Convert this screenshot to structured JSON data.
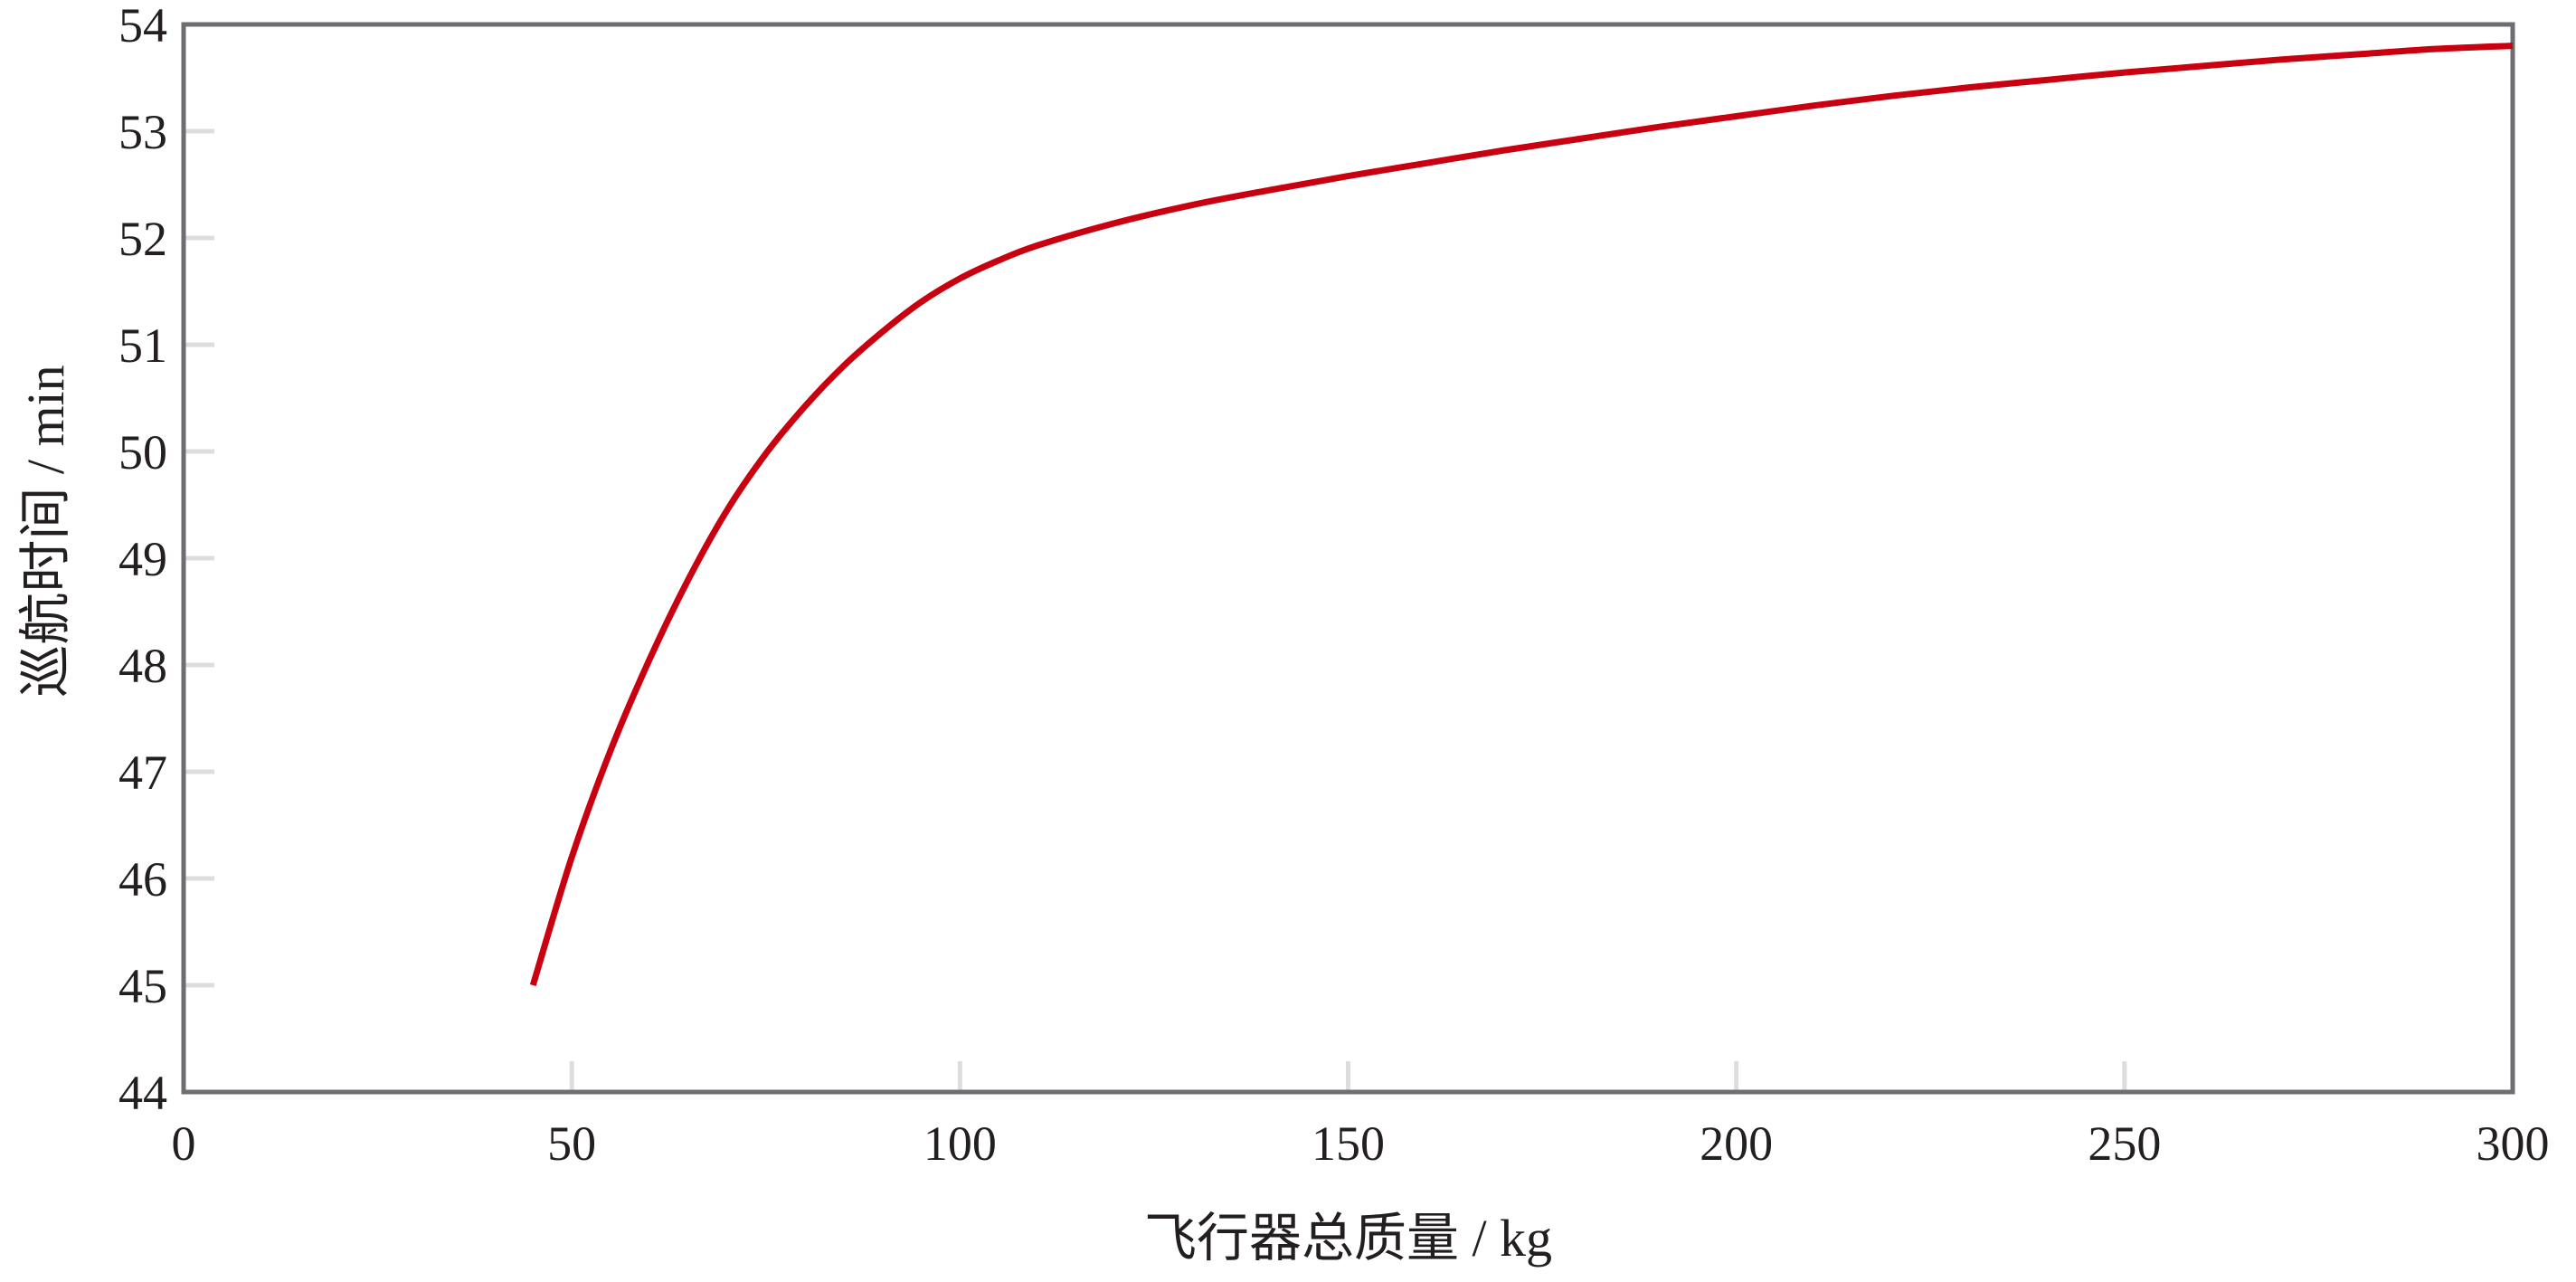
{
  "chart_data": {
    "type": "line",
    "title": "",
    "xlabel": "飞行器总质量 / kg",
    "ylabel": "巡航时间 / min",
    "xlim": [
      0,
      300
    ],
    "ylim": [
      44,
      54
    ],
    "xticks": [
      0,
      50,
      100,
      150,
      200,
      250,
      300
    ],
    "yticks": [
      44,
      45,
      46,
      47,
      48,
      49,
      50,
      51,
      52,
      53,
      54
    ],
    "grid": false,
    "legend": "none",
    "series": [
      {
        "color": "#c8000f",
        "x": [
          45,
          50,
          55,
          60,
          65,
          70,
          75,
          80,
          85,
          90,
          95,
          100,
          105,
          110,
          120,
          130,
          140,
          150,
          160,
          170,
          180,
          190,
          200,
          210,
          220,
          230,
          240,
          250,
          260,
          270,
          280,
          290,
          300
        ],
        "y": [
          45.0,
          46.2,
          47.2,
          48.05,
          48.8,
          49.45,
          49.98,
          50.42,
          50.8,
          51.12,
          51.4,
          51.62,
          51.79,
          51.93,
          52.14,
          52.31,
          52.45,
          52.58,
          52.7,
          52.82,
          52.93,
          53.04,
          53.14,
          53.24,
          53.33,
          53.41,
          53.48,
          53.55,
          53.61,
          53.67,
          53.72,
          53.77,
          53.8
        ]
      }
    ]
  }
}
